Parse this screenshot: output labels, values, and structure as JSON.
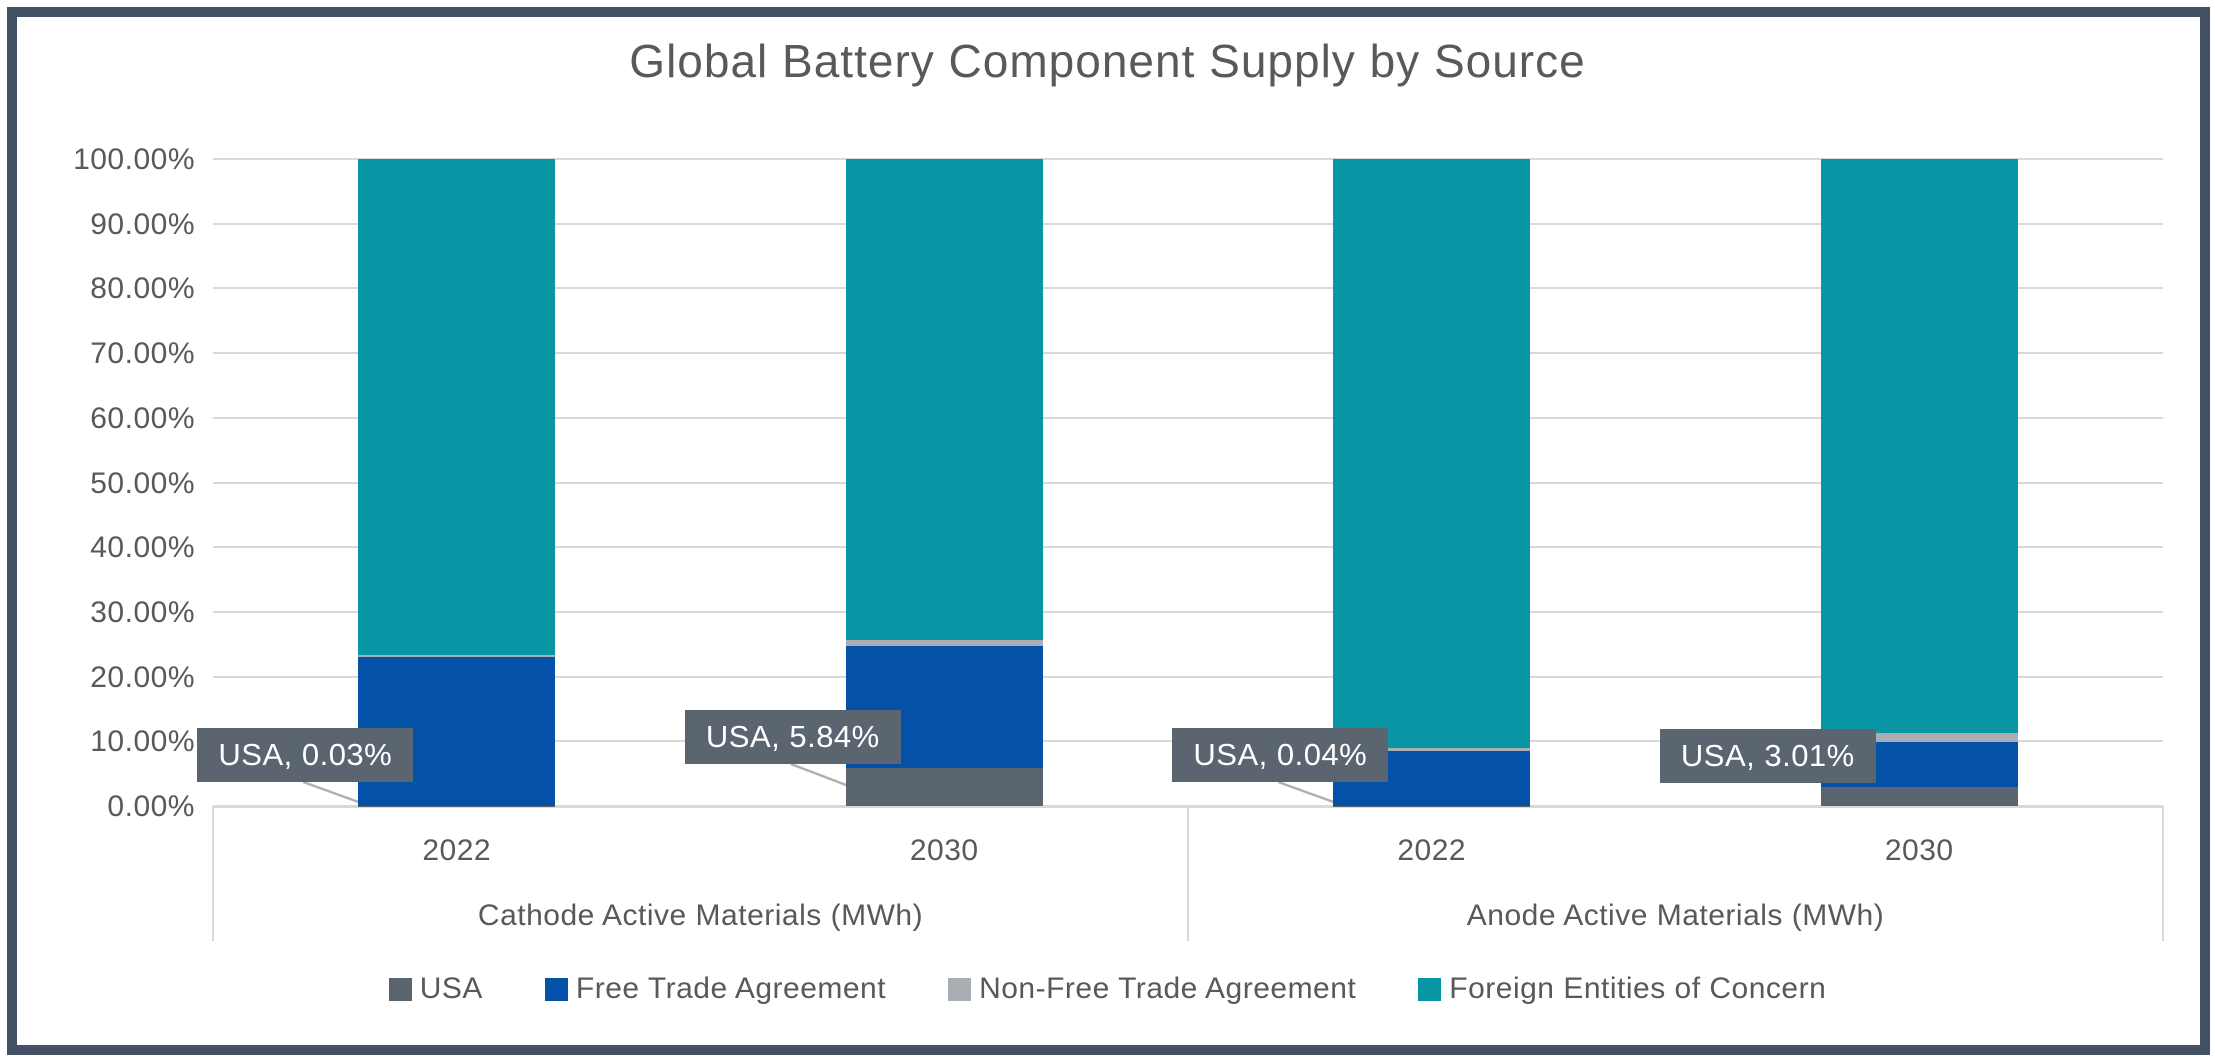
{
  "chart_data": {
    "type": "bar",
    "subtype": "stacked-100-percent",
    "title": "Global Battery Component Supply by Source",
    "y_axis": {
      "min": 0,
      "max": 100,
      "step": 10,
      "tick_labels": [
        "100.00%",
        "90.00%",
        "80.00%",
        "70.00%",
        "60.00%",
        "50.00%",
        "40.00%",
        "30.00%",
        "20.00%",
        "10.00%",
        "0.00%"
      ]
    },
    "groups": [
      {
        "label": "Cathode Active Materials (MWh)",
        "categories": [
          "2022",
          "2030"
        ]
      },
      {
        "label": "Anode Active Materials (MWh)",
        "categories": [
          "2022",
          "2030"
        ]
      }
    ],
    "series": [
      {
        "name": "USA",
        "color": "#5A6570",
        "values": [
          0.03,
          5.84,
          0.04,
          3.01
        ]
      },
      {
        "name": "Free Trade Agreement",
        "color": "#0451A8",
        "values": [
          22.97,
          18.95,
          8.43,
          6.93
        ]
      },
      {
        "name": "Non-Free Trade Agreement",
        "color": "#A8AEB4",
        "values": [
          0.4,
          0.93,
          0.42,
          1.29
        ]
      },
      {
        "name": "Foreign Entities of Concern",
        "color": "#0896A4",
        "values": [
          76.6,
          74.28,
          91.11,
          88.77
        ]
      }
    ],
    "callouts": [
      {
        "bar": 0,
        "text": "USA, 0.03%",
        "dy": 0,
        "leader": true
      },
      {
        "bar": 1,
        "text": "USA, 5.84%",
        "dy": -18,
        "leader": true
      },
      {
        "bar": 2,
        "text": "USA, 0.04%",
        "dy": 0,
        "leader": true
      },
      {
        "bar": 3,
        "text": "USA, 3.01%",
        "dy": 1,
        "leader": false
      }
    ],
    "legend_position": "bottom",
    "grid": true,
    "colors": {
      "gridline": "#D9D9D9",
      "axis_text": "#595959",
      "title_text": "#595959",
      "frame_border": "#445063",
      "callout_bg": "#5A6570",
      "callout_text": "#FFFFFF",
      "leader_line": "#AFAFAF"
    }
  }
}
